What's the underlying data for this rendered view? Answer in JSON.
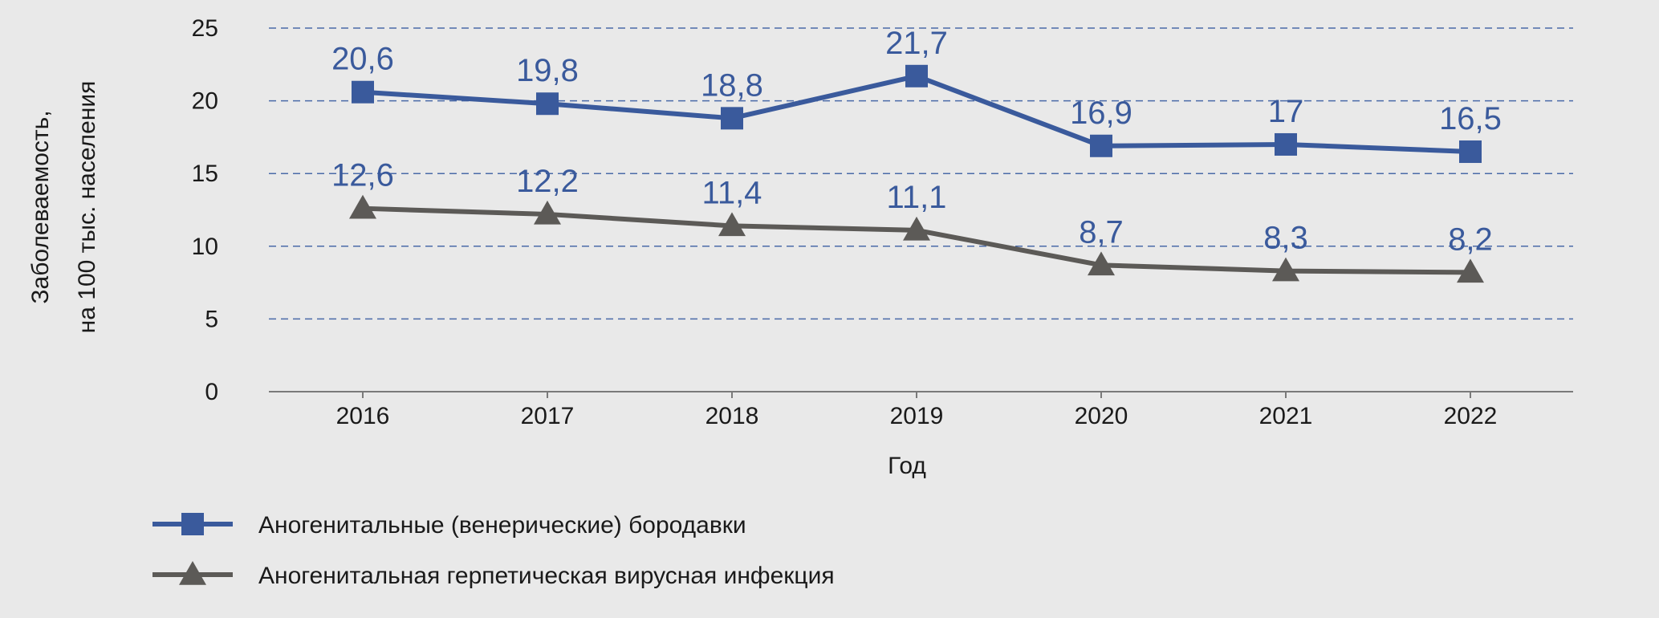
{
  "chart_data": {
    "type": "line",
    "title": "",
    "xlabel": "Год",
    "ylabel_line1": "Заболеваемость,",
    "ylabel_line2": "на 100 тыс. населения",
    "categories": [
      "2016",
      "2017",
      "2018",
      "2019",
      "2020",
      "2021",
      "2022"
    ],
    "ylim": [
      0,
      25
    ],
    "yticks": [
      0,
      5,
      10,
      15,
      20,
      25
    ],
    "grid": "horizontal dashed",
    "legend_position": "bottom-left",
    "series": [
      {
        "name": "Аногенитальные (венерические) бородавки",
        "values": [
          20.6,
          19.8,
          18.8,
          21.7,
          16.9,
          17,
          16.5
        ],
        "labels": [
          "20,6",
          "19,8",
          "18,8",
          "21,7",
          "16,9",
          "17",
          "16,5"
        ],
        "color": "#3a5a9c",
        "marker": "square"
      },
      {
        "name": "Аногенитальная герпетическая вирусная инфекция",
        "values": [
          12.6,
          12.2,
          11.4,
          11.1,
          8.7,
          8.3,
          8.2
        ],
        "labels": [
          "12,6",
          "12,2",
          "11,4",
          "11,1",
          "8,7",
          "8,3",
          "8,2"
        ],
        "color": "#5c5a57",
        "marker": "triangle"
      }
    ]
  }
}
